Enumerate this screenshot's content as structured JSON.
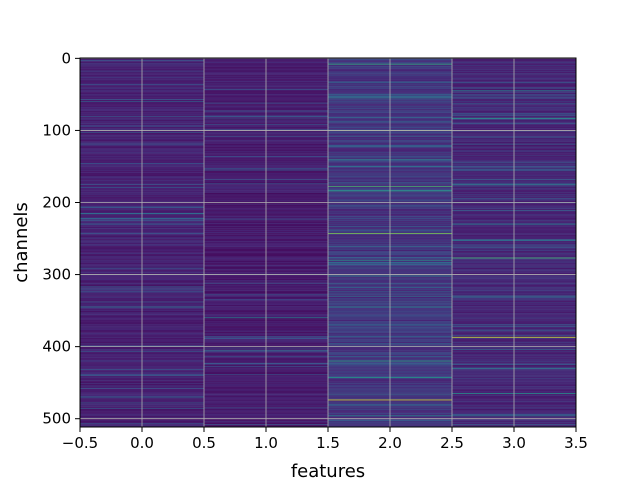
{
  "chart_data": {
    "type": "heatmap",
    "xlabel": "features",
    "ylabel": "channels",
    "x_categories": [
      0,
      1,
      2,
      3
    ],
    "xlim": [
      -0.5,
      3.5
    ],
    "ylim": [
      511.5,
      -0.5
    ],
    "y_inverted": true,
    "x_ticks": [
      -0.5,
      0.0,
      0.5,
      1.0,
      1.5,
      2.0,
      2.5,
      3.0,
      3.5
    ],
    "x_tick_labels": [
      "−0.5",
      "0.0",
      "0.5",
      "1.0",
      "1.5",
      "2.0",
      "2.5",
      "3.0",
      "3.5"
    ],
    "y_ticks": [
      0,
      100,
      200,
      300,
      400,
      500
    ],
    "y_tick_labels": [
      "0",
      "100",
      "200",
      "300",
      "400",
      "500"
    ],
    "channels": 512,
    "colormap": "viridis",
    "grid": true,
    "grid_color": "#b0b0b0",
    "base_level_by_feature": [
      0.12,
      0.1,
      0.18,
      0.14
    ],
    "highlighted_cells": [
      {
        "feature": 0,
        "channel": 60,
        "value": 0.3
      },
      {
        "feature": 0,
        "channel": 215,
        "value": 0.38
      },
      {
        "feature": 0,
        "channel": 222,
        "value": 0.32
      },
      {
        "feature": 0,
        "channel": 230,
        "value": 0.3
      },
      {
        "feature": 0,
        "channel": 345,
        "value": 0.4
      },
      {
        "feature": 0,
        "channel": 470,
        "value": 0.36
      },
      {
        "feature": 1,
        "channel": 155,
        "value": 0.3
      },
      {
        "feature": 1,
        "channel": 360,
        "value": 0.45
      },
      {
        "feature": 1,
        "channel": 405,
        "value": 0.38
      },
      {
        "feature": 2,
        "channel": 8,
        "value": 0.65
      },
      {
        "feature": 2,
        "channel": 55,
        "value": 0.45
      },
      {
        "feature": 2,
        "channel": 100,
        "value": 0.85
      },
      {
        "feature": 2,
        "channel": 140,
        "value": 0.45
      },
      {
        "feature": 2,
        "channel": 150,
        "value": 0.4
      },
      {
        "feature": 2,
        "channel": 178,
        "value": 0.7
      },
      {
        "feature": 2,
        "channel": 184,
        "value": 0.6
      },
      {
        "feature": 2,
        "channel": 243,
        "value": 0.8
      },
      {
        "feature": 2,
        "channel": 280,
        "value": 0.55
      },
      {
        "feature": 2,
        "channel": 302,
        "value": 0.45
      },
      {
        "feature": 2,
        "channel": 330,
        "value": 0.4
      },
      {
        "feature": 2,
        "channel": 345,
        "value": 0.45
      },
      {
        "feature": 2,
        "channel": 370,
        "value": 0.4
      },
      {
        "feature": 2,
        "channel": 420,
        "value": 0.6
      },
      {
        "feature": 2,
        "channel": 443,
        "value": 0.55
      },
      {
        "feature": 2,
        "channel": 474,
        "value": 0.95
      },
      {
        "feature": 2,
        "channel": 496,
        "value": 0.45
      },
      {
        "feature": 3,
        "channel": 45,
        "value": 0.45
      },
      {
        "feature": 3,
        "channel": 83,
        "value": 0.55
      },
      {
        "feature": 3,
        "channel": 175,
        "value": 0.4
      },
      {
        "feature": 3,
        "channel": 230,
        "value": 0.45
      },
      {
        "feature": 3,
        "channel": 252,
        "value": 0.45
      },
      {
        "feature": 3,
        "channel": 277,
        "value": 0.7
      },
      {
        "feature": 3,
        "channel": 330,
        "value": 0.4
      },
      {
        "feature": 3,
        "channel": 387,
        "value": 0.95
      },
      {
        "feature": 3,
        "channel": 430,
        "value": 0.45
      },
      {
        "feature": 3,
        "channel": 465,
        "value": 0.5
      },
      {
        "feature": 3,
        "channel": 496,
        "value": 0.4
      }
    ]
  }
}
